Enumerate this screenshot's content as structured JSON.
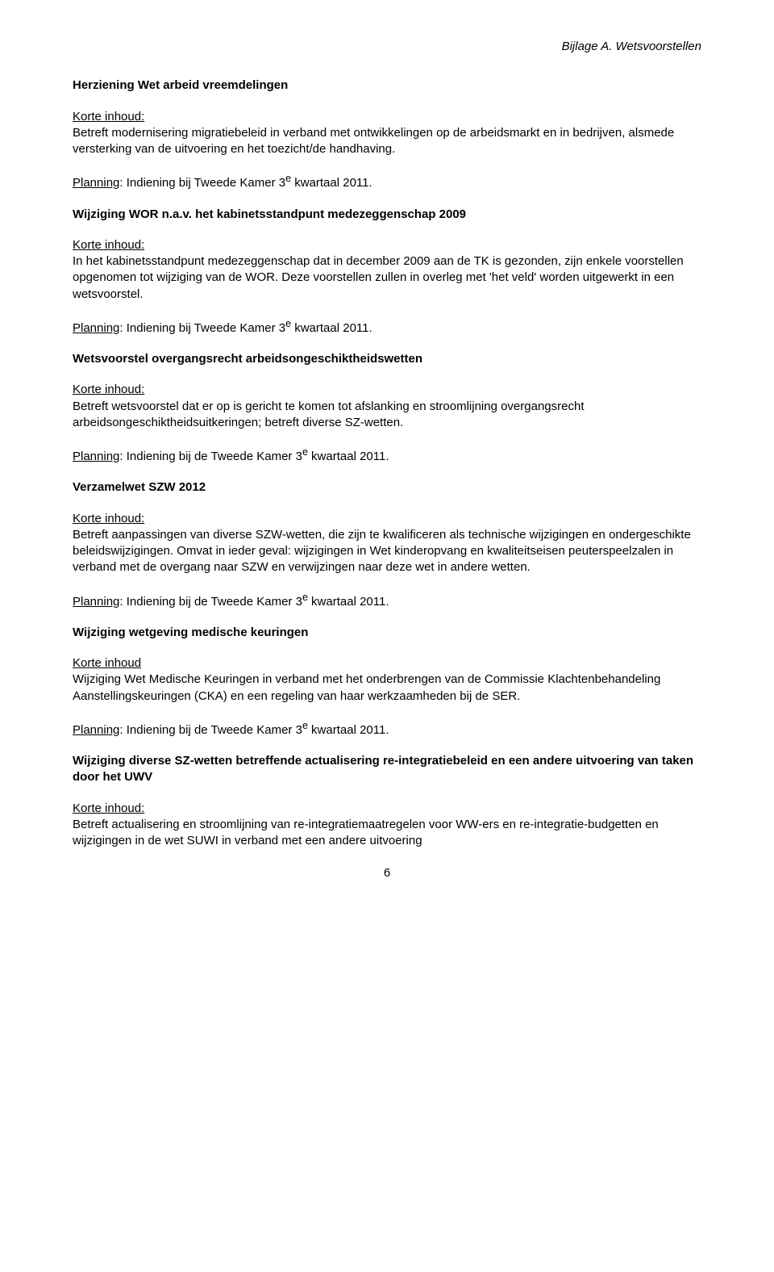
{
  "header": {
    "annex": "Bijlage A. Wetsvoorstellen"
  },
  "sections": [
    {
      "title": "Herziening Wet arbeid vreemdelingen",
      "korte_label": "Korte inhoud:",
      "body": "Betreft modernisering migratiebeleid in verband met ontwikkelingen op de arbeidsmarkt en in bedrijven, alsmede versterking van de uitvoering en het toezicht/de handhaving.",
      "planning_label": "Planning",
      "planning_text": ": Indiening bij Tweede Kamer 3",
      "planning_sup": "e",
      "planning_tail": " kwartaal 2011."
    },
    {
      "title": "Wijziging WOR n.a.v. het kabinetsstandpunt medezeggenschap 2009",
      "korte_label": "Korte inhoud:",
      "body": "In het kabinetsstandpunt medezeggenschap dat in december 2009 aan de TK is gezonden, zijn enkele voorstellen opgenomen tot wijziging van de WOR. Deze voorstellen zullen in overleg met 'het veld' worden uitgewerkt in een wetsvoorstel.",
      "planning_label": "Planning",
      "planning_text": ": Indiening bij Tweede Kamer 3",
      "planning_sup": "e",
      "planning_tail": " kwartaal 2011."
    },
    {
      "title": "Wetsvoorstel overgangsrecht arbeidsongeschiktheidswetten",
      "korte_label": "Korte inhoud:",
      "body": "Betreft wetsvoorstel dat er op is gericht te komen tot afslanking en stroomlijning overgangsrecht arbeidsongeschiktheidsuitkeringen; betreft diverse SZ-wetten.",
      "planning_label": "Planning",
      "planning_text": ": Indiening bij de Tweede Kamer 3",
      "planning_sup": "e",
      "planning_tail": " kwartaal 2011."
    },
    {
      "title": "Verzamelwet SZW 2012",
      "korte_label": "Korte inhoud:",
      "body": "Betreft aanpassingen van diverse SZW-wetten, die zijn te kwalificeren als technische wijzigingen en ondergeschikte beleidswijzigingen. Omvat in ieder geval: wijzigingen in Wet kinderopvang en kwaliteitseisen peuterspeelzalen in verband met de overgang naar SZW en verwijzingen naar deze wet in andere wetten.",
      "planning_label": "Planning",
      "planning_text": ": Indiening bij de Tweede Kamer 3",
      "planning_sup": "e",
      "planning_tail": " kwartaal 2011."
    },
    {
      "title": "Wijziging wetgeving medische keuringen",
      "korte_label": "Korte inhoud",
      "body": "Wijziging Wet Medische Keuringen in verband met het onderbrengen van de Commissie Klachtenbehandeling Aanstellingskeuringen (CKA) en een regeling van haar werkzaamheden bij de SER.",
      "planning_label": "Planning",
      "planning_text": ": Indiening bij de Tweede Kamer 3",
      "planning_sup": "e",
      "planning_tail": " kwartaal 2011."
    },
    {
      "title": "Wijziging diverse SZ-wetten betreffende actualisering re-integratiebeleid en een andere uitvoering van taken door het UWV",
      "korte_label": "Korte inhoud:",
      "body": "Betreft actualisering en stroomlijning van re-integratiemaatregelen voor WW-ers en re-integratie-budgetten en wijzigingen in de wet SUWI in verband met een andere uitvoering",
      "planning_label": "",
      "planning_text": "",
      "planning_sup": "",
      "planning_tail": ""
    }
  ],
  "page_number": "6"
}
